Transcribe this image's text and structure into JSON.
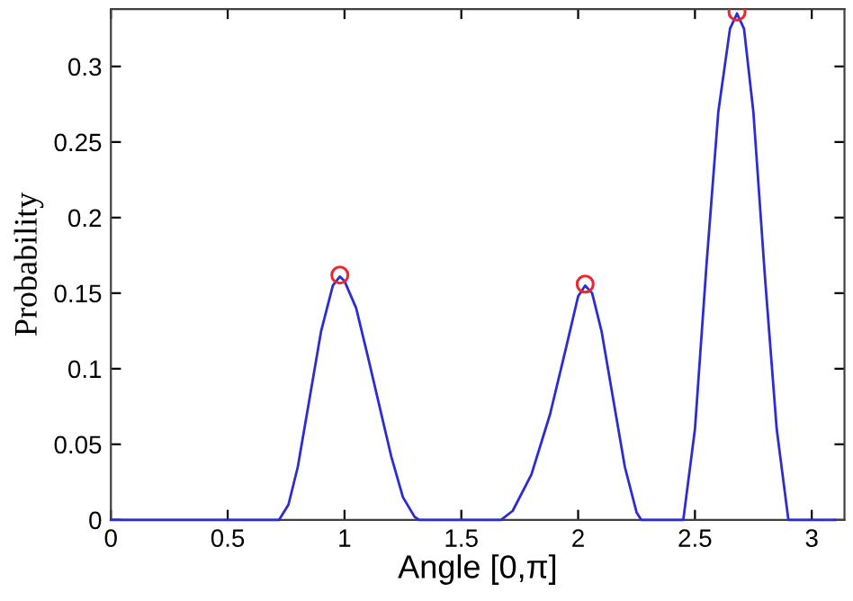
{
  "chart_data": {
    "type": "line",
    "xlabel": "Angle [0,π]",
    "ylabel": "Probability",
    "series": [
      {
        "color": "#2b2bd9",
        "x": [
          0,
          0.72,
          0.76,
          0.8,
          0.85,
          0.9,
          0.95,
          0.98,
          1.0,
          1.05,
          1.1,
          1.15,
          1.2,
          1.25,
          1.3,
          1.32,
          1.67,
          1.72,
          1.8,
          1.88,
          1.95,
          2.0,
          2.03,
          2.06,
          2.1,
          2.15,
          2.2,
          2.25,
          2.27,
          2.45,
          2.5,
          2.55,
          2.6,
          2.65,
          2.68,
          2.71,
          2.75,
          2.8,
          2.85,
          2.9,
          3.1
        ],
        "values": [
          0,
          0,
          0.01,
          0.035,
          0.08,
          0.125,
          0.155,
          0.161,
          0.158,
          0.14,
          0.108,
          0.075,
          0.042,
          0.015,
          0.002,
          0,
          0,
          0.006,
          0.03,
          0.07,
          0.115,
          0.148,
          0.155,
          0.15,
          0.125,
          0.08,
          0.035,
          0.005,
          0,
          0,
          0.06,
          0.17,
          0.27,
          0.325,
          0.335,
          0.325,
          0.27,
          0.16,
          0.06,
          0,
          0
        ]
      },
      {
        "type": "scatter",
        "color": "#e8282d",
        "marker": "circle",
        "x": [
          0.98,
          2.03,
          2.68
        ],
        "values": [
          0.162,
          0.156,
          0.336
        ]
      }
    ],
    "xlim": [
      0,
      3.14
    ],
    "ylim": [
      0,
      0.338
    ],
    "xticks": [
      0,
      0.5,
      1,
      1.5,
      2,
      2.5,
      3
    ],
    "yticks": [
      0,
      0.05,
      0.1,
      0.15,
      0.2,
      0.25,
      0.3
    ],
    "grid": false,
    "legend": false
  }
}
